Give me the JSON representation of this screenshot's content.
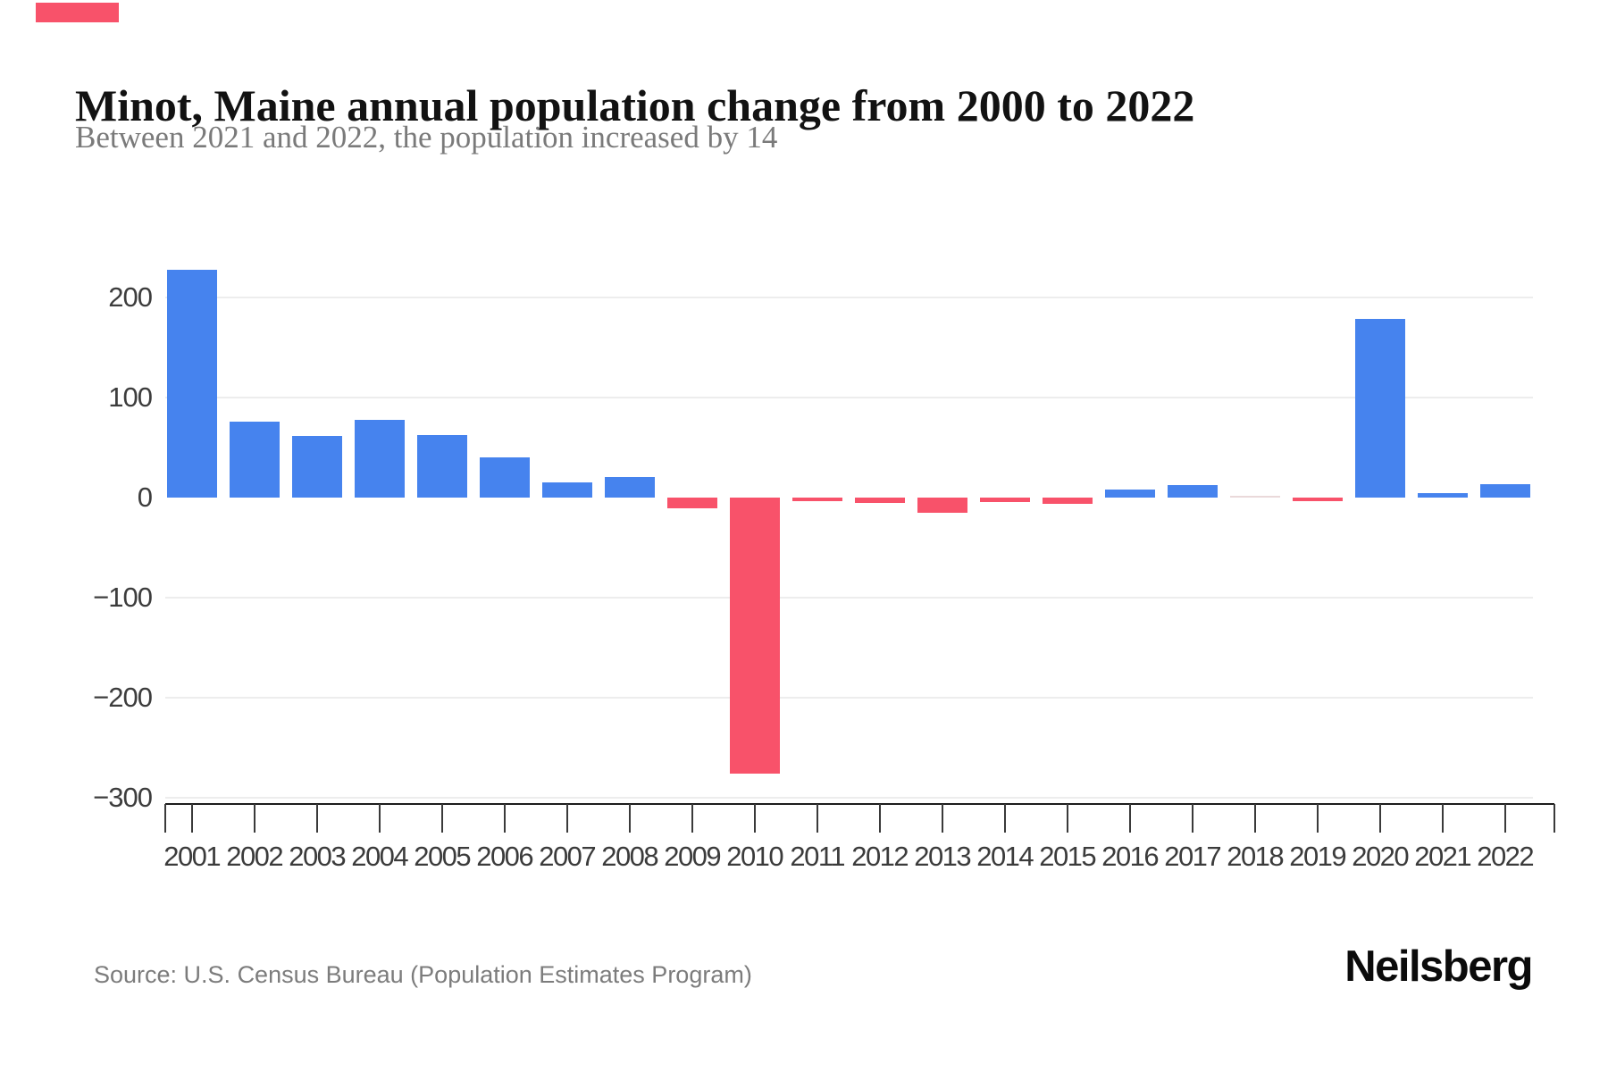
{
  "page": {
    "title": "Minot, Maine annual population change from 2000 to 2022",
    "subtitle": "Between 2021 and 2022, the population increased by 14",
    "source": "Source: U.S. Census Bureau (Population Estimates Program)",
    "brand": "Neilsberg"
  },
  "colors": {
    "positive_bar": "#4683ee",
    "negative_bar": "#f8526a",
    "zero_bar": "#ead9da",
    "gridline": "#ededed",
    "axis_line": "#1c1c1c",
    "tick": "#3a3a3a",
    "accent": "#f8526a"
  },
  "chart_data": {
    "type": "bar",
    "title": "Minot, Maine annual population change from 2000 to 2022",
    "subtitle": "Between 2021 and 2022, the population increased by 14",
    "xlabel": "",
    "ylabel": "",
    "categories": [
      "2001",
      "2002",
      "2003",
      "2004",
      "2005",
      "2006",
      "2007",
      "2008",
      "2009",
      "2010",
      "2011",
      "2012",
      "2013",
      "2014",
      "2015",
      "2016",
      "2017",
      "2018",
      "2019",
      "2020",
      "2021",
      "2022"
    ],
    "values": [
      228,
      76,
      62,
      78,
      63,
      41,
      16,
      21,
      -10,
      -276,
      -3,
      -5,
      -15,
      -4,
      -6,
      8,
      13,
      0,
      -3,
      179,
      5,
      14
    ],
    "ylim": [
      -300,
      230
    ],
    "yticks": [
      200,
      100,
      0,
      -100,
      -200,
      -300
    ],
    "gridline_values": [
      200,
      100,
      -100,
      -200,
      -300
    ],
    "grid": true,
    "legend": "none",
    "positive_color": "#4683ee",
    "negative_color": "#f8526a"
  }
}
